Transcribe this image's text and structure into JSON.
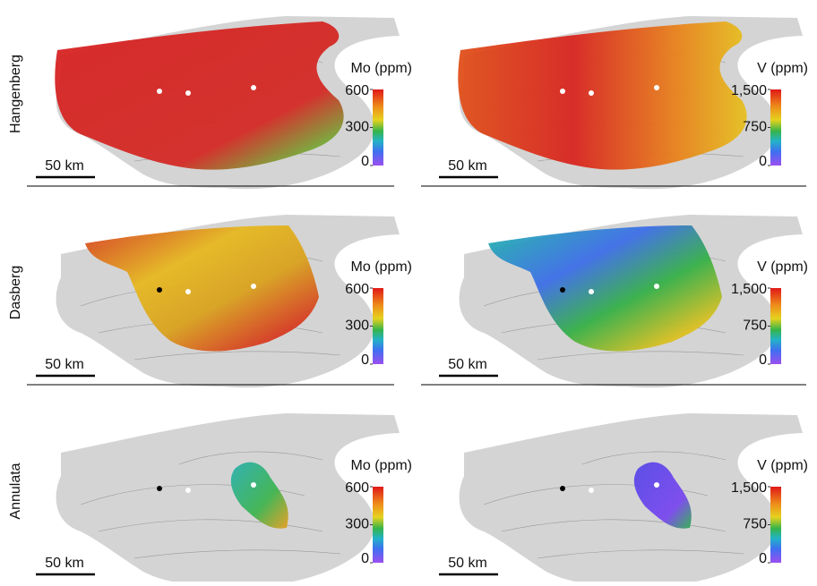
{
  "rows": [
    {
      "label": "Hangenberg",
      "panels": [
        {
          "colorbar": {
            "title": "Mo (ppm)",
            "lim": [
              0,
              600
            ],
            "ticks": [
              0,
              300,
              600
            ]
          },
          "scale_bar": "50 km"
        },
        {
          "colorbar": {
            "title": "V (ppm)",
            "lim": [
              0,
              1500
            ],
            "ticks": [
              0,
              750,
              {
                "value": 1500,
                "label": "1,500"
              }
            ]
          },
          "scale_bar": "50 km"
        }
      ]
    },
    {
      "label": "Dasberg",
      "panels": [
        {
          "colorbar": {
            "title": "Mo (ppm)",
            "lim": [
              0,
              600
            ],
            "ticks": [
              0,
              300,
              600
            ]
          },
          "scale_bar": "50 km"
        },
        {
          "colorbar": {
            "title": "V (ppm)",
            "lim": [
              0,
              1500
            ],
            "ticks": [
              0,
              750,
              {
                "value": 1500,
                "label": "1,500"
              }
            ]
          },
          "scale_bar": "50 km"
        }
      ]
    },
    {
      "label": "Annulata",
      "panels": [
        {
          "colorbar": {
            "title": "Mo (ppm)",
            "lim": [
              0,
              600
            ],
            "ticks": [
              0,
              300,
              600
            ]
          },
          "scale_bar": "50 km"
        },
        {
          "colorbar": {
            "title": "V (ppm)",
            "lim": [
              0,
              1500
            ],
            "ticks": [
              0,
              750,
              {
                "value": 1500,
                "label": "1,500"
              }
            ]
          },
          "scale_bar": "50 km"
        }
      ]
    }
  ]
}
